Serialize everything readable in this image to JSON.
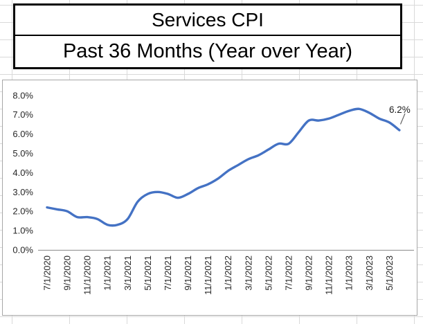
{
  "title_box": {
    "line1": "Services CPI",
    "line2": "Past 36 Months (Year over Year)"
  },
  "chart_data": {
    "type": "line",
    "title": "Services CPI",
    "subtitle": "Past 36 Months (Year over Year)",
    "x": [
      "7/1/2020",
      "8/1/2020",
      "9/1/2020",
      "10/1/2020",
      "11/1/2020",
      "12/1/2020",
      "1/1/2021",
      "2/1/2021",
      "3/1/2021",
      "4/1/2021",
      "5/1/2021",
      "6/1/2021",
      "7/1/2021",
      "8/1/2021",
      "9/1/2021",
      "10/1/2021",
      "11/1/2021",
      "12/1/2021",
      "1/1/2022",
      "2/1/2022",
      "3/1/2022",
      "4/1/2022",
      "5/1/2022",
      "6/1/2022",
      "7/1/2022",
      "8/1/2022",
      "9/1/2022",
      "10/1/2022",
      "11/1/2022",
      "12/1/2022",
      "1/1/2023",
      "2/1/2023",
      "3/1/2023",
      "4/1/2023",
      "5/1/2023",
      "6/1/2023"
    ],
    "values": [
      2.2,
      2.1,
      2.0,
      1.7,
      1.7,
      1.6,
      1.3,
      1.3,
      1.6,
      2.5,
      2.9,
      3.0,
      2.9,
      2.7,
      2.9,
      3.2,
      3.4,
      3.7,
      4.1,
      4.4,
      4.7,
      4.9,
      5.2,
      5.5,
      5.5,
      6.1,
      6.7,
      6.7,
      6.8,
      7.0,
      7.2,
      7.3,
      7.1,
      6.8,
      6.6,
      6.2
    ],
    "x_tick_labels": [
      "7/1/2020",
      "9/1/2020",
      "11/1/2020",
      "1/1/2021",
      "3/1/2021",
      "5/1/2021",
      "7/1/2021",
      "9/1/2021",
      "11/1/2021",
      "1/1/2022",
      "3/1/2022",
      "5/1/2022",
      "7/1/2022",
      "9/1/2022",
      "11/1/2022",
      "1/1/2023",
      "3/1/2023",
      "5/1/2023"
    ],
    "y_tick_labels": [
      "0.0%",
      "1.0%",
      "2.0%",
      "3.0%",
      "4.0%",
      "5.0%",
      "6.0%",
      "7.0%",
      "8.0%"
    ],
    "ylim": [
      0,
      8
    ],
    "y_tick_step": 1,
    "grid": false,
    "legend": "none",
    "smoothed": true,
    "line_color": "#4472C4",
    "axis_color": "#9b9b9b",
    "last_point_annotation": "6.2%"
  }
}
